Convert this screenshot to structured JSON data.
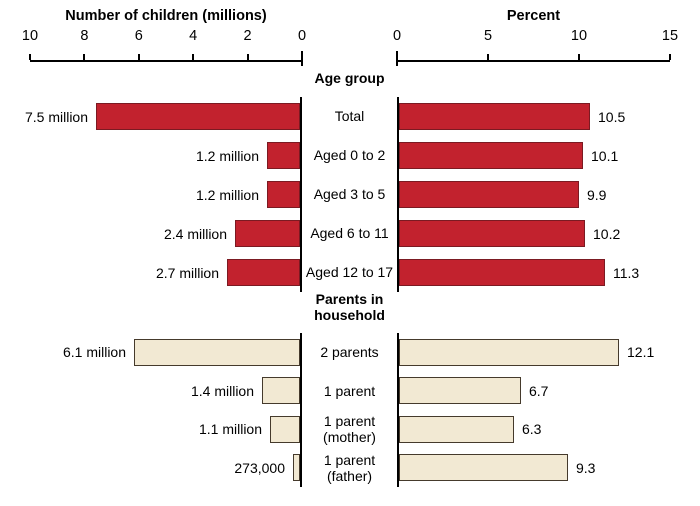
{
  "chart_data": {
    "type": "bar",
    "layout": "diverging-butterfly",
    "left_axis": {
      "title": "Number of children (millions)",
      "ticks": [
        10,
        8,
        6,
        4,
        2,
        0
      ],
      "max": 10,
      "direction": "right-to-left"
    },
    "right_axis": {
      "title": "Percent",
      "ticks": [
        0,
        5,
        10,
        15
      ],
      "max": 15,
      "direction": "left-to-right"
    },
    "colors": {
      "age_bar_fill": "#c2222e",
      "age_bar_border": "#7b1a22",
      "parents_bar_fill": "#f2e9d3",
      "parents_bar_border": "#453a2c",
      "axis_line": "#000000"
    },
    "sections": [
      {
        "header": "Age group",
        "rows": [
          {
            "category": "Total",
            "left_value": 7.5,
            "left_label": "7.5 million",
            "right_value": 10.5,
            "right_label": "10.5"
          },
          {
            "category": "Aged 0 to 2",
            "left_value": 1.2,
            "left_label": "1.2 million",
            "right_value": 10.1,
            "right_label": "10.1"
          },
          {
            "category": "Aged 3 to 5",
            "left_value": 1.2,
            "left_label": "1.2 million",
            "right_value": 9.9,
            "right_label": "9.9"
          },
          {
            "category": "Aged 6 to 11",
            "left_value": 2.4,
            "left_label": "2.4 million",
            "right_value": 10.2,
            "right_label": "10.2"
          },
          {
            "category": "Aged 12 to 17",
            "left_value": 2.7,
            "left_label": "2.7 million",
            "right_value": 11.3,
            "right_label": "11.3"
          }
        ]
      },
      {
        "header": "Parents in\nhousehold",
        "rows": [
          {
            "category": "2 parents",
            "left_value": 6.1,
            "left_label": "6.1 million",
            "right_value": 12.1,
            "right_label": "12.1"
          },
          {
            "category": "1 parent",
            "left_value": 1.4,
            "left_label": "1.4 million",
            "right_value": 6.7,
            "right_label": "6.7"
          },
          {
            "category": "1 parent\n(mother)",
            "left_value": 1.1,
            "left_label": "1.1 million",
            "right_value": 6.3,
            "right_label": "6.3"
          },
          {
            "category": "1 parent\n(father)",
            "left_value": 0.273,
            "left_label": "273,000",
            "right_value": 9.3,
            "right_label": "9.3"
          }
        ]
      }
    ]
  }
}
